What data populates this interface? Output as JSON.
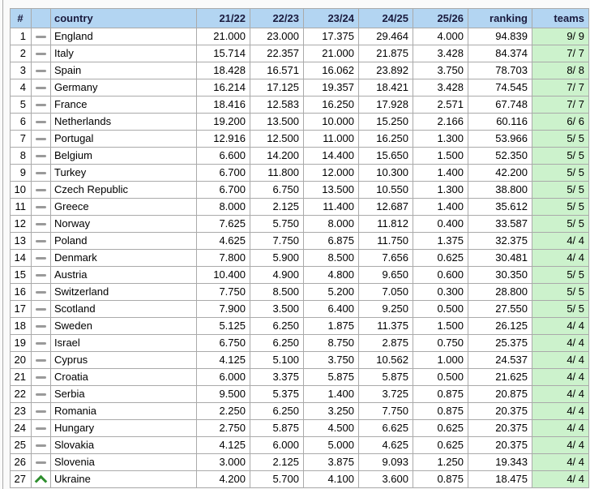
{
  "colors": {
    "header_bg": "#b3d5f2",
    "header_text": "#1a1a3d",
    "teams_bg": "#ccf2cc",
    "dash": "#9a9a9a",
    "up_arrow": "#2f8f2f",
    "cell_border": "#aaaaaa",
    "outer_border": "#888888",
    "page_bg": "#fafafa"
  },
  "icons": {
    "same": "dash-icon",
    "up": "arrow-up-icon"
  },
  "table": {
    "header": {
      "rank": "#",
      "mover": "",
      "country": "country",
      "seasons": [
        "21/22",
        "22/23",
        "23/24",
        "24/25",
        "25/26"
      ],
      "ranking": "ranking",
      "teams": "teams"
    },
    "rows": [
      {
        "rank": "1",
        "mover": "same",
        "country": "England",
        "seasons": [
          "21.000",
          "23.000",
          "17.375",
          "29.464",
          "4.000"
        ],
        "ranking": "94.839",
        "teams": "9/ 9"
      },
      {
        "rank": "2",
        "mover": "same",
        "country": "Italy",
        "seasons": [
          "15.714",
          "22.357",
          "21.000",
          "21.875",
          "3.428"
        ],
        "ranking": "84.374",
        "teams": "7/ 7"
      },
      {
        "rank": "3",
        "mover": "same",
        "country": "Spain",
        "seasons": [
          "18.428",
          "16.571",
          "16.062",
          "23.892",
          "3.750"
        ],
        "ranking": "78.703",
        "teams": "8/ 8"
      },
      {
        "rank": "4",
        "mover": "same",
        "country": "Germany",
        "seasons": [
          "16.214",
          "17.125",
          "19.357",
          "18.421",
          "3.428"
        ],
        "ranking": "74.545",
        "teams": "7/ 7"
      },
      {
        "rank": "5",
        "mover": "same",
        "country": "France",
        "seasons": [
          "18.416",
          "12.583",
          "16.250",
          "17.928",
          "2.571"
        ],
        "ranking": "67.748",
        "teams": "7/ 7"
      },
      {
        "rank": "6",
        "mover": "same",
        "country": "Netherlands",
        "seasons": [
          "19.200",
          "13.500",
          "10.000",
          "15.250",
          "2.166"
        ],
        "ranking": "60.116",
        "teams": "6/ 6"
      },
      {
        "rank": "7",
        "mover": "same",
        "country": "Portugal",
        "seasons": [
          "12.916",
          "12.500",
          "11.000",
          "16.250",
          "1.300"
        ],
        "ranking": "53.966",
        "teams": "5/ 5"
      },
      {
        "rank": "8",
        "mover": "same",
        "country": "Belgium",
        "seasons": [
          "6.600",
          "14.200",
          "14.400",
          "15.650",
          "1.500"
        ],
        "ranking": "52.350",
        "teams": "5/ 5"
      },
      {
        "rank": "9",
        "mover": "same",
        "country": "Turkey",
        "seasons": [
          "6.700",
          "11.800",
          "12.000",
          "10.300",
          "1.400"
        ],
        "ranking": "42.200",
        "teams": "5/ 5"
      },
      {
        "rank": "10",
        "mover": "same",
        "country": "Czech Republic",
        "seasons": [
          "6.700",
          "6.750",
          "13.500",
          "10.550",
          "1.300"
        ],
        "ranking": "38.800",
        "teams": "5/ 5"
      },
      {
        "rank": "11",
        "mover": "same",
        "country": "Greece",
        "seasons": [
          "8.000",
          "2.125",
          "11.400",
          "12.687",
          "1.400"
        ],
        "ranking": "35.612",
        "teams": "5/ 5"
      },
      {
        "rank": "12",
        "mover": "same",
        "country": "Norway",
        "seasons": [
          "7.625",
          "5.750",
          "8.000",
          "11.812",
          "0.400"
        ],
        "ranking": "33.587",
        "teams": "5/ 5"
      },
      {
        "rank": "13",
        "mover": "same",
        "country": "Poland",
        "seasons": [
          "4.625",
          "7.750",
          "6.875",
          "11.750",
          "1.375"
        ],
        "ranking": "32.375",
        "teams": "4/ 4"
      },
      {
        "rank": "14",
        "mover": "same",
        "country": "Denmark",
        "seasons": [
          "7.800",
          "5.900",
          "8.500",
          "7.656",
          "0.625"
        ],
        "ranking": "30.481",
        "teams": "4/ 4"
      },
      {
        "rank": "15",
        "mover": "same",
        "country": "Austria",
        "seasons": [
          "10.400",
          "4.900",
          "4.800",
          "9.650",
          "0.600"
        ],
        "ranking": "30.350",
        "teams": "5/ 5"
      },
      {
        "rank": "16",
        "mover": "same",
        "country": "Switzerland",
        "seasons": [
          "7.750",
          "8.500",
          "5.200",
          "7.050",
          "0.300"
        ],
        "ranking": "28.800",
        "teams": "5/ 5"
      },
      {
        "rank": "17",
        "mover": "same",
        "country": "Scotland",
        "seasons": [
          "7.900",
          "3.500",
          "6.400",
          "9.250",
          "0.500"
        ],
        "ranking": "27.550",
        "teams": "5/ 5"
      },
      {
        "rank": "18",
        "mover": "same",
        "country": "Sweden",
        "seasons": [
          "5.125",
          "6.250",
          "1.875",
          "11.375",
          "1.500"
        ],
        "ranking": "26.125",
        "teams": "4/ 4"
      },
      {
        "rank": "19",
        "mover": "same",
        "country": "Israel",
        "seasons": [
          "6.750",
          "6.250",
          "8.750",
          "2.875",
          "0.750"
        ],
        "ranking": "25.375",
        "teams": "4/ 4"
      },
      {
        "rank": "20",
        "mover": "same",
        "country": "Cyprus",
        "seasons": [
          "4.125",
          "5.100",
          "3.750",
          "10.562",
          "1.000"
        ],
        "ranking": "24.537",
        "teams": "4/ 4"
      },
      {
        "rank": "21",
        "mover": "same",
        "country": "Croatia",
        "seasons": [
          "6.000",
          "3.375",
          "5.875",
          "5.875",
          "0.500"
        ],
        "ranking": "21.625",
        "teams": "4/ 4"
      },
      {
        "rank": "22",
        "mover": "same",
        "country": "Serbia",
        "seasons": [
          "9.500",
          "5.375",
          "1.400",
          "3.725",
          "0.875"
        ],
        "ranking": "20.875",
        "teams": "4/ 4"
      },
      {
        "rank": "23",
        "mover": "same",
        "country": "Romania",
        "seasons": [
          "2.250",
          "6.250",
          "3.250",
          "7.750",
          "0.875"
        ],
        "ranking": "20.375",
        "teams": "4/ 4"
      },
      {
        "rank": "24",
        "mover": "same",
        "country": "Hungary",
        "seasons": [
          "2.750",
          "5.875",
          "4.500",
          "6.625",
          "0.625"
        ],
        "ranking": "20.375",
        "teams": "4/ 4"
      },
      {
        "rank": "25",
        "mover": "same",
        "country": "Slovakia",
        "seasons": [
          "4.125",
          "6.000",
          "5.000",
          "4.625",
          "0.625"
        ],
        "ranking": "20.375",
        "teams": "4/ 4"
      },
      {
        "rank": "26",
        "mover": "same",
        "country": "Slovenia",
        "seasons": [
          "3.000",
          "2.125",
          "3.875",
          "9.093",
          "1.250"
        ],
        "ranking": "19.343",
        "teams": "4/ 4"
      },
      {
        "rank": "27",
        "mover": "up",
        "country": "Ukraine",
        "seasons": [
          "4.200",
          "5.700",
          "4.100",
          "3.600",
          "0.875"
        ],
        "ranking": "18.475",
        "teams": "4/ 4"
      }
    ]
  }
}
